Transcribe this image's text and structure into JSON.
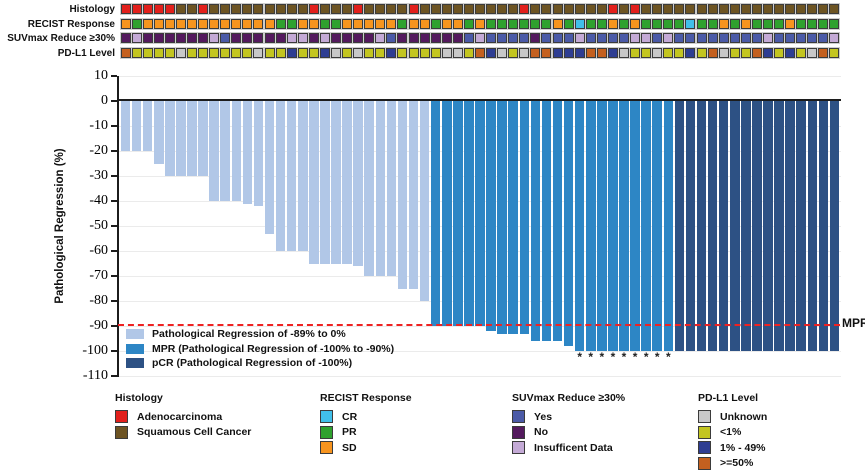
{
  "tracks": {
    "labels": [
      "Histology",
      "RECIST Response",
      "SUVmax Reduce ≥30%",
      "PD-L1 Level"
    ]
  },
  "chart_data": {
    "type": "bar",
    "title": "",
    "ylabel": "Pathological Regression (%)",
    "ylim": [
      -110,
      10
    ],
    "yticks": [
      10,
      0,
      -10,
      -20,
      -30,
      -40,
      -50,
      -60,
      -70,
      -80,
      -90,
      -100,
      -110
    ],
    "grid": "horizontal-light",
    "n_patients": 65,
    "values": [
      -20,
      -20,
      -20,
      -25,
      -30,
      -30,
      -30,
      -30,
      -40,
      -40,
      -40,
      -41,
      -42,
      -53,
      -60,
      -60,
      -60,
      -65,
      -65,
      -65,
      -65,
      -66,
      -70,
      -70,
      -70,
      -75,
      -75,
      -80,
      -90,
      -90,
      -90,
      -90,
      -90,
      -92,
      -93,
      -93,
      -93,
      -96,
      -96,
      -96,
      -98,
      -100,
      -100,
      -100,
      -100,
      -100,
      -100,
      -100,
      -100,
      -100,
      -100,
      -100,
      -100,
      -100,
      -100,
      -100,
      -100,
      -100,
      -100,
      -100,
      -100,
      -100,
      -100,
      -100,
      -100
    ],
    "bar_groups": {
      "light_last_col": 28,
      "mpr_last_col": 50,
      "pcr_last_col": 65
    },
    "threshold_line": {
      "value": -90,
      "label": "MPR"
    },
    "asterisk_symbol": "*",
    "asterisk_columns": [
      42,
      43,
      44,
      45,
      46,
      47,
      48,
      49,
      50
    ],
    "annotations": {
      "histology": [
        "A",
        "A",
        "A",
        "A",
        "A",
        "S",
        "S",
        "A",
        "S",
        "S",
        "S",
        "S",
        "S",
        "S",
        "S",
        "S",
        "S",
        "A",
        "S",
        "S",
        "S",
        "A",
        "S",
        "S",
        "S",
        "S",
        "A",
        "S",
        "S",
        "S",
        "S",
        "S",
        "S",
        "S",
        "S",
        "S",
        "A",
        "S",
        "S",
        "S",
        "S",
        "S",
        "S",
        "S",
        "A",
        "S",
        "A",
        "S",
        "S",
        "S",
        "S",
        "S",
        "S",
        "S",
        "S",
        "S",
        "S",
        "S",
        "S",
        "S",
        "S",
        "S",
        "S",
        "S",
        "S"
      ],
      "recist": [
        "SD",
        "PR",
        "SD",
        "SD",
        "SD",
        "SD",
        "SD",
        "SD",
        "SD",
        "SD",
        "SD",
        "SD",
        "SD",
        "SD",
        "PR",
        "PR",
        "SD",
        "SD",
        "PR",
        "PR",
        "SD",
        "SD",
        "SD",
        "SD",
        "SD",
        "PR",
        "SD",
        "SD",
        "PR",
        "SD",
        "SD",
        "PR",
        "SD",
        "PR",
        "PR",
        "PR",
        "PR",
        "PR",
        "PR",
        "SD",
        "PR",
        "CR",
        "PR",
        "PR",
        "SD",
        "PR",
        "SD",
        "PR",
        "PR",
        "PR",
        "PR",
        "CR",
        "PR",
        "PR",
        "SD",
        "PR",
        "SD",
        "PR",
        "PR",
        "PR",
        "SD",
        "PR",
        "PR",
        "PR",
        "PR"
      ],
      "suvmax": [
        "N",
        "I",
        "N",
        "N",
        "N",
        "N",
        "N",
        "N",
        "I",
        "Y",
        "N",
        "N",
        "N",
        "N",
        "N",
        "I",
        "I",
        "N",
        "I",
        "N",
        "N",
        "N",
        "N",
        "I",
        "Y",
        "N",
        "N",
        "N",
        "N",
        "N",
        "N",
        "Y",
        "I",
        "Y",
        "Y",
        "Y",
        "Y",
        "N",
        "Y",
        "Y",
        "Y",
        "I",
        "Y",
        "Y",
        "Y",
        "Y",
        "I",
        "I",
        "Y",
        "I",
        "Y",
        "Y",
        "Y",
        "Y",
        "Y",
        "Y",
        "Y",
        "Y",
        "I",
        "Y",
        "Y",
        "Y",
        "Y",
        "Y",
        "I"
      ],
      "pdl1": [
        "R",
        "L1",
        "L1",
        "L1",
        "L1",
        "U",
        "L1",
        "L1",
        "L1",
        "L1",
        "L1",
        "L1",
        "U",
        "L1",
        "L1",
        "B",
        "L1",
        "L1",
        "B",
        "U",
        "L1",
        "U",
        "L1",
        "L1",
        "B",
        "L1",
        "L1",
        "L1",
        "L1",
        "U",
        "U",
        "L1",
        "R",
        "B",
        "U",
        "L1",
        "U",
        "R",
        "R",
        "B",
        "B",
        "B",
        "R",
        "R",
        "B",
        "U",
        "L1",
        "L1",
        "U",
        "L1",
        "L1",
        "B",
        "L1",
        "R",
        "U",
        "L1",
        "L1",
        "R",
        "B",
        "L1",
        "B",
        "L1",
        "U",
        "R",
        "L1"
      ]
    }
  },
  "colors": {
    "A": "#e2201c",
    "S": "#6d5423",
    "CR": "#41c0ea",
    "PR": "#2fa12e",
    "SD": "#f7941e",
    "Y": "#4b5aa7",
    "N": "#541a5e",
    "I": "#c4aad6",
    "U": "#c8c8c8",
    "L1": "#c3c520",
    "B": "#2e3d92",
    "R": "#c4601f",
    "bar_light": "#b1c7e7",
    "bar_mpr": "#2d86c5",
    "bar_pcr": "#2d5184",
    "threshold_red": "#ee2222"
  },
  "plot_legend": [
    {
      "key": "bar_light",
      "label": "Pathological Regression of -89% to 0%"
    },
    {
      "key": "bar_mpr",
      "label": "MPR (Pathological Regression of -100% to -90%)"
    },
    {
      "key": "bar_pcr",
      "label": "pCR (Pathological Regression of -100%)"
    }
  ],
  "legend_groups": [
    {
      "title": "Histology",
      "items": [
        {
          "key": "A",
          "label": "Adenocarcinoma"
        },
        {
          "key": "S",
          "label": "Squamous Cell Cancer"
        }
      ]
    },
    {
      "title": "RECIST Response",
      "items": [
        {
          "key": "CR",
          "label": "CR"
        },
        {
          "key": "PR",
          "label": "PR"
        },
        {
          "key": "SD",
          "label": "SD"
        }
      ]
    },
    {
      "title": "SUVmax Reduce ≥30%",
      "items": [
        {
          "key": "Y",
          "label": "Yes"
        },
        {
          "key": "N",
          "label": "No"
        },
        {
          "key": "I",
          "label": "Insufficent Data"
        }
      ]
    },
    {
      "title": "PD-L1 Level",
      "items": [
        {
          "key": "U",
          "label": "Unknown"
        },
        {
          "key": "L1",
          "label": "<1%"
        },
        {
          "key": "B",
          "label": "1% - 49%"
        },
        {
          "key": "R",
          "label": ">=50%"
        }
      ]
    }
  ]
}
